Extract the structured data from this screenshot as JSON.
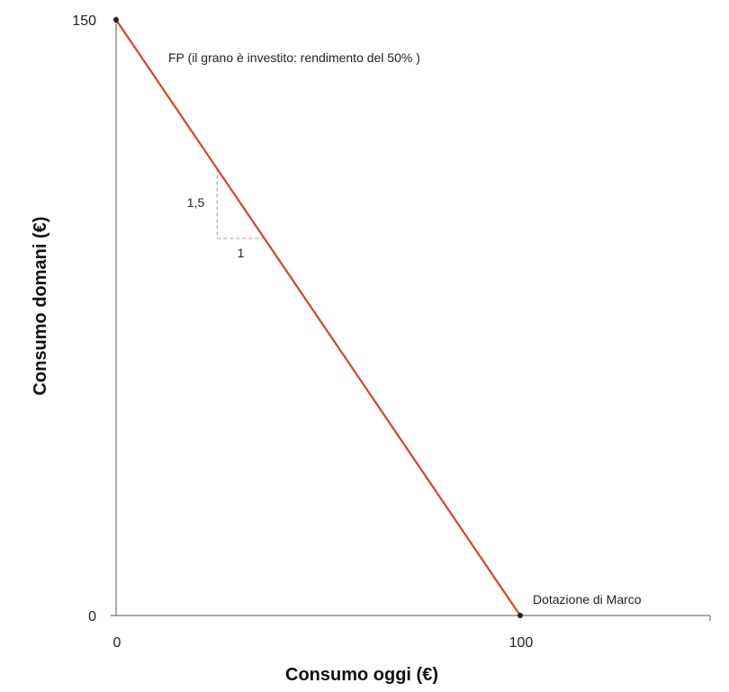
{
  "chart_data": {
    "type": "line",
    "title": "",
    "xlabel": "Consumo oggi (€)",
    "ylabel": "Consumo domani (€)",
    "xlim": [
      0,
      147
    ],
    "ylim": [
      0,
      150
    ],
    "x_ticks": [
      "0",
      "100"
    ],
    "x_tick_values": [
      0,
      100
    ],
    "y_ticks": [
      "0",
      "150"
    ],
    "y_tick_values": [
      0,
      150
    ],
    "grid": false,
    "series": [
      {
        "name": "FP (il grano è investito: rendimento del 50% )",
        "color": "#d9432a",
        "x": [
          0,
          100
        ],
        "y": [
          150,
          0
        ]
      }
    ],
    "points": [
      {
        "x": 0,
        "y": 150,
        "label": ""
      },
      {
        "x": 100,
        "y": 0,
        "label": "Dotazione di Marco"
      }
    ],
    "slope_triangle": {
      "x_start": 25,
      "x_end": 36.7,
      "rise_label": "1,5",
      "run_label": "1"
    },
    "line_label": "FP (il grano è investito: rendimento del 50% )"
  }
}
